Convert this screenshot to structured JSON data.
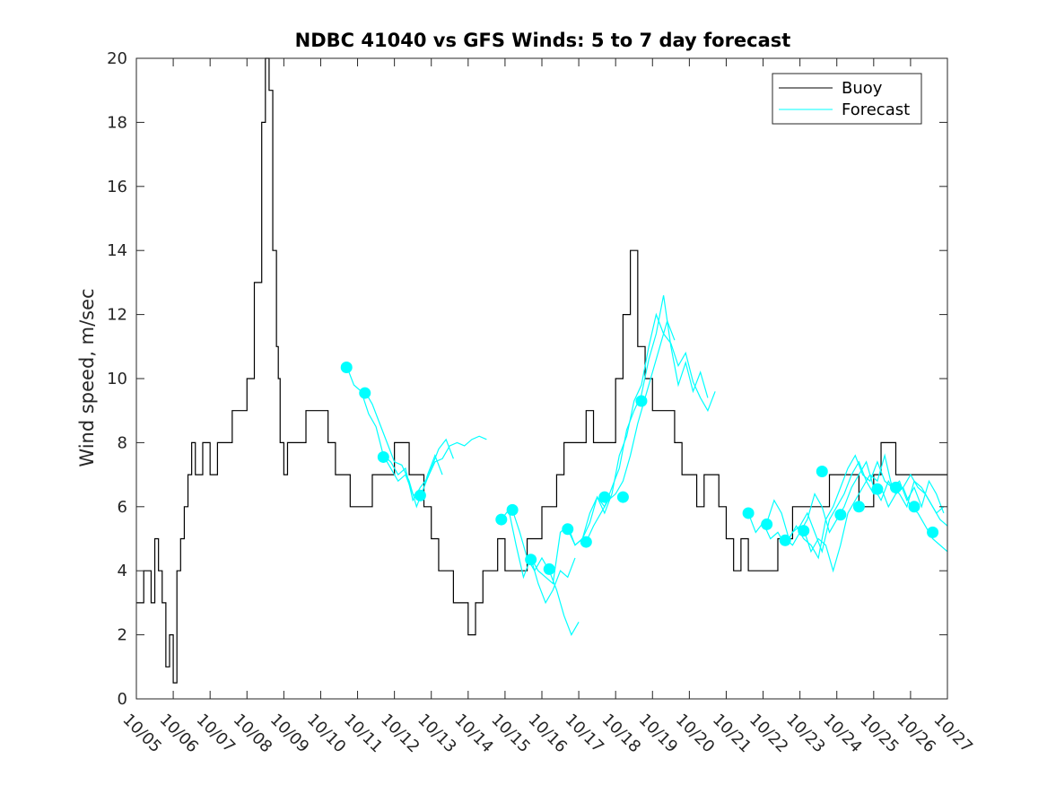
{
  "chart_data": {
    "type": "line",
    "title": "NDBC 41040 vs GFS Winds: 5 to 7 day forecast",
    "ylabel": "Wind speed, m/sec",
    "xlabel": "",
    "xlim": [
      0,
      22
    ],
    "ylim": [
      0,
      20
    ],
    "x_tick_labels": [
      "10/05",
      "10/06",
      "10/07",
      "10/08",
      "10/09",
      "10/10",
      "10/11",
      "10/12",
      "10/13",
      "10/14",
      "10/15",
      "10/16",
      "10/17",
      "10/18",
      "10/19",
      "10/20",
      "10/21",
      "10/22",
      "10/23",
      "10/24",
      "10/25",
      "10/26",
      "10/27"
    ],
    "y_ticks": [
      0,
      2,
      4,
      6,
      8,
      10,
      12,
      14,
      16,
      18,
      20
    ],
    "legend": {
      "position": "top-right",
      "entries": [
        {
          "label": "Buoy",
          "color": "#000000"
        },
        {
          "label": "Forecast",
          "color": "#00ffff"
        }
      ]
    },
    "colors": {
      "buoy": "#000000",
      "forecast": "#00ffff",
      "axis": "#262626"
    },
    "series": [
      {
        "name": "Buoy",
        "x": [
          0,
          0.2,
          0.4,
          0.5,
          0.6,
          0.7,
          0.8,
          0.9,
          1.0,
          1.1,
          1.2,
          1.3,
          1.4,
          1.5,
          1.6,
          1.8,
          2.0,
          2.2,
          2.4,
          2.6,
          2.8,
          3.0,
          3.2,
          3.4,
          3.5,
          3.6,
          3.7,
          3.8,
          3.85,
          3.9,
          4.0,
          4.1,
          4.2,
          4.3,
          4.4,
          4.6,
          4.8,
          5.0,
          5.2,
          5.4,
          5.6,
          5.8,
          6.0,
          6.2,
          6.4,
          6.6,
          6.8,
          7.0,
          7.2,
          7.4,
          7.6,
          7.8,
          8.0,
          8.2,
          8.4,
          8.6,
          8.8,
          9.0,
          9.2,
          9.4,
          9.6,
          9.8,
          10.0,
          10.2,
          10.4,
          10.6,
          10.8,
          11.0,
          11.2,
          11.4,
          11.6,
          11.8,
          12.0,
          12.2,
          12.4,
          12.6,
          12.8,
          13.0,
          13.2,
          13.4,
          13.6,
          13.8,
          14.0,
          14.1,
          14.2,
          14.4,
          14.6,
          14.8,
          15.0,
          15.2,
          15.4,
          15.6,
          15.8,
          16.0,
          16.2,
          16.4,
          16.6,
          16.8,
          17.0,
          17.2,
          17.4,
          17.6,
          17.8,
          18.0,
          18.2,
          18.4,
          18.6,
          18.8,
          19.0,
          19.2,
          19.4,
          19.6,
          19.8,
          20.0,
          20.2,
          20.4,
          20.6,
          20.8,
          21.0,
          21.2
        ],
        "y": [
          3,
          4,
          3,
          5,
          4,
          3,
          1,
          2,
          0.5,
          4,
          5,
          6,
          7,
          8,
          7,
          8,
          7,
          8,
          8,
          9,
          9,
          10,
          13,
          18,
          20,
          19,
          14,
          11,
          10,
          8,
          7,
          8,
          8,
          8,
          8,
          9,
          9,
          9,
          8,
          7,
          7,
          6,
          6,
          6,
          7,
          7,
          7,
          8,
          8,
          7,
          7,
          6,
          5,
          4,
          4,
          3,
          3,
          2,
          3,
          4,
          4,
          5,
          4,
          4,
          4,
          5,
          5,
          6,
          6,
          7,
          8,
          8,
          8,
          9,
          8,
          8,
          8,
          10,
          12,
          14,
          11,
          10,
          9,
          9,
          9,
          9,
          8,
          7,
          7,
          6,
          7,
          7,
          6,
          5,
          4,
          5,
          4,
          4,
          4,
          4,
          5,
          5,
          6,
          6,
          6,
          6,
          6,
          7,
          7,
          7,
          7,
          6,
          6,
          7,
          8,
          8,
          7,
          7,
          7,
          7
        ]
      },
      {
        "name": "Forecast",
        "segments": [
          {
            "x": [
              5.7,
              5.9,
              6.1,
              6.3,
              6.5,
              6.7,
              6.9,
              7.1,
              7.3,
              7.5,
              7.7,
              7.9,
              8.1,
              8.3,
              8.5,
              8.7,
              8.9,
              9.1,
              9.3,
              9.5
            ],
            "y": [
              10.4,
              9.8,
              9.6,
              8.9,
              8.5,
              7.6,
              7.4,
              7.0,
              7.2,
              6.2,
              6.6,
              6.9,
              7.4,
              7.5,
              7.9,
              8.0,
              7.9,
              8.1,
              8.2,
              8.1
            ]
          },
          {
            "x": [
              6.2,
              6.4,
              6.6,
              6.8,
              7.0,
              7.2,
              7.4,
              7.6,
              7.8,
              8.0,
              8.2,
              8.4,
              8.6
            ],
            "y": [
              9.6,
              9.2,
              8.6,
              8.0,
              7.4,
              7.3,
              6.8,
              6.0,
              6.6,
              7.2,
              7.8,
              8.1,
              7.5
            ]
          },
          {
            "x": [
              6.7,
              6.9,
              7.1,
              7.3,
              7.5,
              7.7,
              7.9,
              8.1,
              8.3
            ],
            "y": [
              7.6,
              7.2,
              6.8,
              7.0,
              6.4,
              6.2,
              7.0,
              7.6,
              7.0
            ]
          },
          {
            "x": [
              9.9,
              10.1,
              10.3,
              10.5,
              10.7,
              10.9,
              11.1,
              11.3,
              11.5,
              11.7,
              11.9
            ],
            "y": [
              5.6,
              5.9,
              4.8,
              3.8,
              4.4,
              3.6,
              3.0,
              3.4,
              4.0,
              3.8,
              4.4
            ]
          },
          {
            "x": [
              10.2,
              10.4,
              10.6,
              10.8,
              11.0,
              11.2,
              11.4,
              11.6,
              11.8,
              12.0
            ],
            "y": [
              5.9,
              5.2,
              4.4,
              4.0,
              4.4,
              4.0,
              3.4,
              2.6,
              2.0,
              2.4
            ]
          },
          {
            "x": [
              10.7,
              10.9,
              11.1,
              11.3,
              11.5,
              11.7,
              11.9,
              12.1,
              12.3,
              12.5,
              12.7,
              12.9,
              13.1,
              13.3,
              13.5,
              13.7,
              13.9,
              14.1,
              14.3,
              14.5,
              14.7,
              14.9,
              15.1,
              15.3,
              15.5
            ],
            "y": [
              4.4,
              4.0,
              3.8,
              3.6,
              5.2,
              5.4,
              4.8,
              5.0,
              5.8,
              6.3,
              6.0,
              6.6,
              7.2,
              8.4,
              9.0,
              9.5,
              10.6,
              11.4,
              12.6,
              11.0,
              9.8,
              10.5,
              9.6,
              10.2,
              9.4
            ]
          },
          {
            "x": [
              11.7,
              11.9,
              12.1,
              12.3,
              12.5,
              12.7,
              12.9,
              13.1,
              13.3,
              13.5,
              13.7,
              13.9,
              14.1,
              14.3,
              14.5,
              14.7,
              14.9,
              15.1,
              15.3,
              15.5,
              15.7
            ],
            "y": [
              5.3,
              4.8,
              5.0,
              5.5,
              6.3,
              5.8,
              6.4,
              7.6,
              8.2,
              9.3,
              9.8,
              11.0,
              12.0,
              11.4,
              11.1,
              10.4,
              10.8,
              9.9,
              9.4,
              9.0,
              9.6
            ]
          },
          {
            "x": [
              12.2,
              12.4,
              12.6,
              12.8,
              13.0,
              13.2,
              13.4,
              13.6,
              13.8,
              14.0,
              14.2,
              14.4,
              14.6
            ],
            "y": [
              4.9,
              5.4,
              5.8,
              6.2,
              6.4,
              6.8,
              7.6,
              8.6,
              9.4,
              10.2,
              11.0,
              11.8,
              11.2
            ]
          },
          {
            "x": [
              16.6,
              16.8,
              17.0,
              17.2,
              17.4,
              17.6,
              17.8,
              18.0,
              18.2,
              18.4,
              18.6,
              18.8,
              19.0,
              19.2,
              19.4,
              19.6,
              19.8,
              20.0,
              20.2,
              20.4,
              20.6,
              20.8,
              21.0,
              21.2,
              21.4,
              21.6,
              21.8,
              22.0
            ],
            "y": [
              5.8,
              5.2,
              5.5,
              5.0,
              5.2,
              4.8,
              5.2,
              5.4,
              5.8,
              5.2,
              4.6,
              5.6,
              6.0,
              6.4,
              7.0,
              7.4,
              6.8,
              6.4,
              6.6,
              6.0,
              6.4,
              6.6,
              6.0,
              5.8,
              5.4,
              5.0,
              4.8,
              4.6
            ]
          },
          {
            "x": [
              17.1,
              17.3,
              17.5,
              17.7,
              17.9,
              18.1,
              18.3,
              18.5,
              18.7,
              18.9,
              19.1,
              19.3,
              19.5,
              19.7,
              19.9,
              20.1,
              20.3,
              20.5,
              20.7,
              20.9,
              21.1,
              21.3,
              21.5,
              21.7,
              21.9
            ],
            "y": [
              5.5,
              6.2,
              5.8,
              5.0,
              5.4,
              5.0,
              4.8,
              4.4,
              5.6,
              6.0,
              6.6,
              7.2,
              7.6,
              7.0,
              6.8,
              7.4,
              6.8,
              6.6,
              6.8,
              6.2,
              6.6,
              6.0,
              6.8,
              6.4,
              5.8
            ]
          },
          {
            "x": [
              17.6,
              17.8,
              18.0,
              18.2,
              18.4,
              18.6,
              18.8,
              19.0,
              19.2,
              19.4,
              19.6,
              19.8,
              20.0,
              20.2,
              20.4,
              20.6,
              20.8,
              21.0,
              21.2,
              21.4,
              21.6,
              21.8,
              22.0
            ],
            "y": [
              5.0,
              4.8,
              5.2,
              5.6,
              6.4,
              6.0,
              5.2,
              5.6,
              6.0,
              6.6,
              7.0,
              7.4,
              6.6,
              6.2,
              6.8,
              6.4,
              6.6,
              7.0,
              6.6,
              6.4,
              6.0,
              5.6,
              5.4
            ]
          },
          {
            "x": [
              18.1,
              18.3,
              18.5,
              18.7,
              18.9,
              19.1,
              19.3,
              19.5,
              19.7,
              19.9,
              20.1,
              20.3,
              20.5,
              20.7,
              20.9,
              21.1,
              21.3,
              21.5,
              21.7,
              21.9
            ],
            "y": [
              5.3,
              4.6,
              5.0,
              4.8,
              4.0,
              4.8,
              5.8,
              6.2,
              6.6,
              7.0,
              6.8,
              7.6,
              6.6,
              6.4,
              6.0,
              6.8,
              6.6,
              6.2,
              5.8,
              6.0
            ]
          }
        ]
      },
      {
        "name": "Forecast start",
        "x": [
          5.7,
          6.2,
          6.7,
          7.7,
          9.9,
          10.2,
          10.7,
          11.2,
          11.7,
          12.2,
          12.7,
          13.2,
          13.7,
          16.6,
          17.1,
          17.6,
          18.1,
          18.6,
          19.1,
          19.6,
          20.1,
          20.6,
          21.1,
          21.6
        ],
        "y": [
          10.35,
          9.55,
          7.55,
          6.35,
          5.6,
          5.9,
          4.35,
          4.05,
          5.3,
          4.9,
          6.3,
          6.3,
          9.3,
          5.8,
          5.45,
          4.95,
          5.25,
          7.1,
          5.75,
          6.0,
          6.55,
          6.6,
          6.0,
          5.2
        ]
      }
    ]
  }
}
